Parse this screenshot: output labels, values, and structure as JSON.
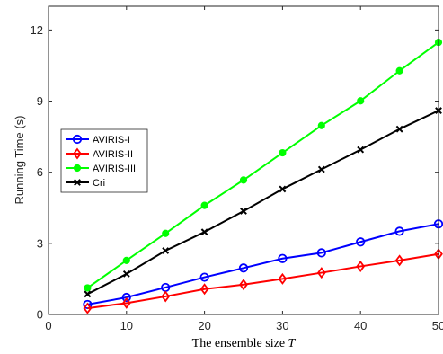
{
  "chart_data": {
    "type": "line",
    "xlabel": "The ensemble size ",
    "xlabel_var": "T",
    "ylabel": "Running Time (s)",
    "xlim": [
      0,
      50
    ],
    "ylim": [
      0,
      13
    ],
    "xticks": [
      0,
      10,
      20,
      30,
      40,
      50
    ],
    "yticks": [
      0,
      3,
      6,
      9,
      12
    ],
    "xtick_labels": [
      "0",
      "10",
      "20",
      "30",
      "40",
      "50"
    ],
    "ytick_labels": [
      "0",
      "3",
      "6",
      "9",
      "12"
    ],
    "grid": false,
    "legend_position": "left",
    "x": [
      5,
      10,
      15,
      20,
      25,
      30,
      35,
      40,
      45,
      50
    ],
    "series": [
      {
        "name": "AVIRIS-I",
        "color": "#0000ff",
        "marker": "circle",
        "values": [
          0.42,
          0.72,
          1.14,
          1.57,
          1.96,
          2.36,
          2.6,
          3.06,
          3.51,
          3.82
        ]
      },
      {
        "name": "AVIRIS-II",
        "color": "#ff0000",
        "marker": "diamond",
        "values": [
          0.26,
          0.48,
          0.76,
          1.07,
          1.26,
          1.5,
          1.76,
          2.03,
          2.28,
          2.55
        ]
      },
      {
        "name": "AVIRIS-III",
        "color": "#00ff00",
        "marker": "dot",
        "values": [
          1.12,
          2.28,
          3.42,
          4.6,
          5.67,
          6.82,
          7.97,
          9.01,
          10.28,
          11.48
        ]
      },
      {
        "name": "Cri",
        "color": "#000000",
        "marker": "x",
        "values": [
          0.86,
          1.71,
          2.69,
          3.48,
          4.36,
          5.29,
          6.12,
          6.95,
          7.82,
          8.6
        ]
      }
    ]
  }
}
